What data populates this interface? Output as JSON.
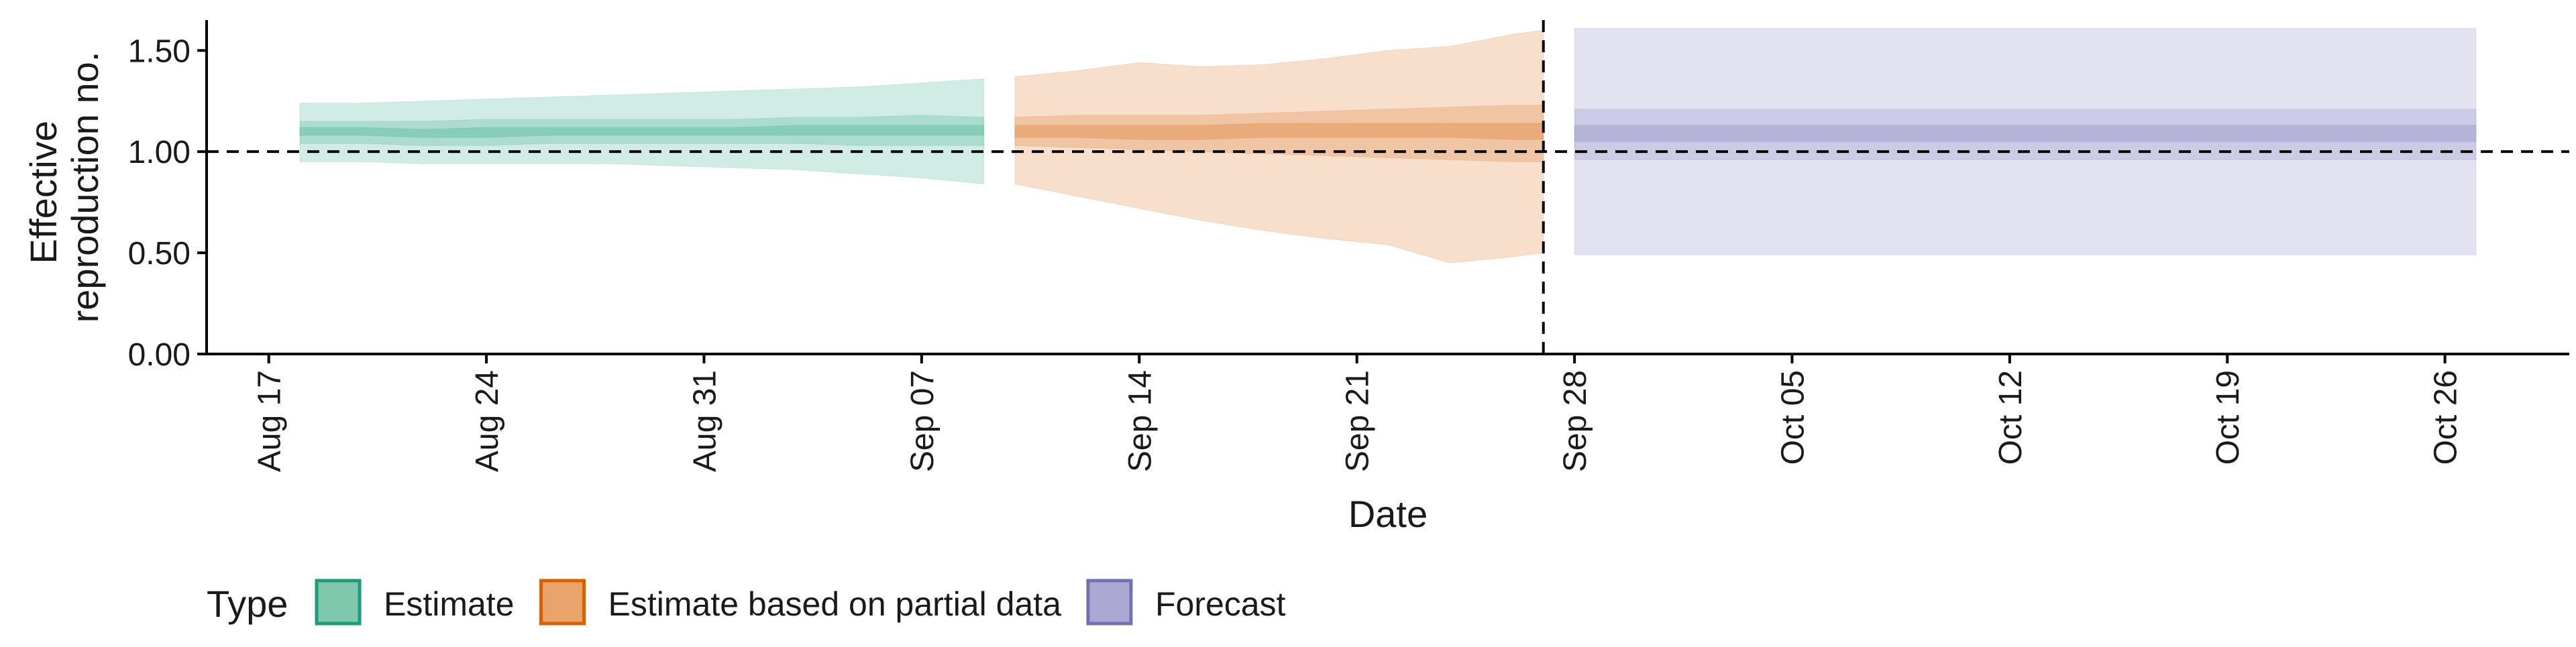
{
  "chart_data": {
    "type": "area",
    "xlabel": "Date",
    "ylabel_lines": [
      "Effective",
      "reproduction no."
    ],
    "ylim": [
      0,
      1.65
    ],
    "y_ticks": [
      0.0,
      0.5,
      1.0,
      1.5
    ],
    "y_tick_labels": [
      "0.00",
      "0.50",
      "1.00",
      "1.50"
    ],
    "x_range": [
      "2020-08-15",
      "2020-10-30"
    ],
    "x_ticks": [
      "2020-08-17",
      "2020-08-24",
      "2020-08-31",
      "2020-09-07",
      "2020-09-14",
      "2020-09-21",
      "2020-09-28",
      "2020-10-05",
      "2020-10-12",
      "2020-10-19",
      "2020-10-26"
    ],
    "x_tick_labels": [
      "Aug 17",
      "Aug 24",
      "Aug 31",
      "Sep 07",
      "Sep 14",
      "Sep 21",
      "Sep 28",
      "Oct 05",
      "Oct 12",
      "Oct 19",
      "Oct 26"
    ],
    "reference_hline": 1.0,
    "reference_vline": "2020-09-27",
    "legend": {
      "title": "Type",
      "position": "bottom-left",
      "items": [
        {
          "label": "Estimate",
          "fill": "#7fc8ae",
          "stroke": "#1b9e77"
        },
        {
          "label": "Estimate based on partial data",
          "fill": "#e8a46b",
          "stroke": "#d95f02"
        },
        {
          "label": "Forecast",
          "fill": "#aba8d4",
          "stroke": "#7570b3"
        }
      ]
    },
    "series": [
      {
        "name": "Estimate",
        "color": "#1b9e77",
        "x": [
          "2020-08-18",
          "2020-08-20",
          "2020-08-22",
          "2020-08-24",
          "2020-08-26",
          "2020-08-28",
          "2020-08-30",
          "2020-09-01",
          "2020-09-03",
          "2020-09-05",
          "2020-09-07",
          "2020-09-09"
        ],
        "median": [
          1.1,
          1.1,
          1.09,
          1.09,
          1.1,
          1.1,
          1.1,
          1.1,
          1.1,
          1.1,
          1.11,
          1.1
        ],
        "lower_90": [
          0.95,
          0.95,
          0.94,
          0.94,
          0.94,
          0.94,
          0.93,
          0.92,
          0.91,
          0.89,
          0.87,
          0.84
        ],
        "upper_90": [
          1.24,
          1.24,
          1.25,
          1.26,
          1.27,
          1.28,
          1.29,
          1.3,
          1.31,
          1.32,
          1.34,
          1.36
        ],
        "lower_50": [
          1.04,
          1.04,
          1.03,
          1.03,
          1.04,
          1.04,
          1.04,
          1.04,
          1.04,
          1.03,
          1.03,
          1.03
        ],
        "upper_50": [
          1.15,
          1.15,
          1.15,
          1.16,
          1.16,
          1.16,
          1.16,
          1.16,
          1.17,
          1.17,
          1.18,
          1.17
        ],
        "lower_20": [
          1.08,
          1.08,
          1.07,
          1.07,
          1.08,
          1.08,
          1.08,
          1.08,
          1.08,
          1.08,
          1.08,
          1.08
        ],
        "upper_20": [
          1.12,
          1.12,
          1.11,
          1.12,
          1.12,
          1.12,
          1.12,
          1.12,
          1.13,
          1.13,
          1.13,
          1.13
        ]
      },
      {
        "name": "Estimate based on partial data",
        "color": "#d95f02",
        "x": [
          "2020-09-10",
          "2020-09-12",
          "2020-09-14",
          "2020-09-16",
          "2020-09-18",
          "2020-09-20",
          "2020-09-22",
          "2020-09-24",
          "2020-09-26",
          "2020-09-27"
        ],
        "median": [
          1.1,
          1.1,
          1.09,
          1.09,
          1.1,
          1.1,
          1.1,
          1.1,
          1.1,
          1.1
        ],
        "lower_90": [
          0.84,
          0.78,
          0.72,
          0.66,
          0.61,
          0.57,
          0.54,
          0.45,
          0.48,
          0.5
        ],
        "upper_90": [
          1.37,
          1.4,
          1.44,
          1.42,
          1.43,
          1.46,
          1.5,
          1.52,
          1.58,
          1.6
        ],
        "lower_50": [
          1.03,
          1.02,
          1.01,
          1.0,
          0.99,
          0.98,
          0.97,
          0.96,
          0.95,
          0.95
        ],
        "upper_50": [
          1.17,
          1.18,
          1.18,
          1.18,
          1.19,
          1.2,
          1.21,
          1.22,
          1.23,
          1.23
        ],
        "lower_20": [
          1.07,
          1.07,
          1.06,
          1.06,
          1.07,
          1.07,
          1.07,
          1.07,
          1.06,
          1.06
        ],
        "upper_20": [
          1.13,
          1.13,
          1.13,
          1.13,
          1.14,
          1.14,
          1.14,
          1.14,
          1.14,
          1.14
        ]
      },
      {
        "name": "Forecast",
        "color": "#7570b3",
        "x": [
          "2020-09-28",
          "2020-10-27"
        ],
        "median": [
          1.1,
          1.1
        ],
        "lower_90": [
          0.49,
          0.49
        ],
        "upper_90": [
          1.61,
          1.61
        ],
        "lower_50": [
          0.96,
          0.96
        ],
        "upper_50": [
          1.21,
          1.21
        ],
        "lower_20": [
          1.05,
          1.05
        ],
        "upper_20": [
          1.13,
          1.13
        ]
      }
    ]
  }
}
